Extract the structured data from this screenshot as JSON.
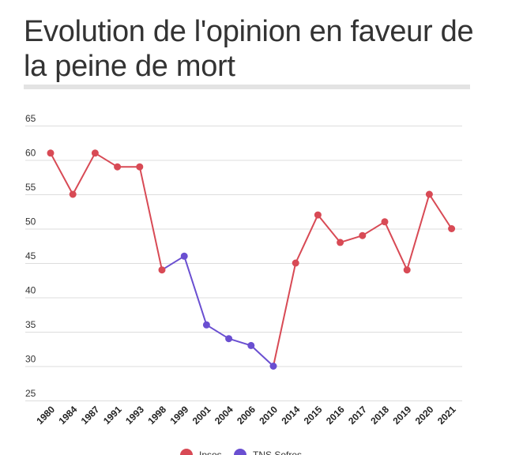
{
  "chart_data": {
    "type": "line",
    "title": "Evolution de l'opinion en faveur de la peine de mort",
    "xlabel": "",
    "ylabel": "",
    "categories": [
      "1980",
      "1984",
      "1987",
      "1991",
      "1993",
      "1998",
      "1999",
      "2001",
      "2004",
      "2006",
      "2010",
      "2014",
      "2015",
      "2016",
      "2017",
      "2018",
      "2019",
      "2020",
      "2021"
    ],
    "ylim": [
      25,
      65
    ],
    "yticks": [
      25,
      30,
      35,
      40,
      45,
      50,
      55,
      60,
      65
    ],
    "grid": true,
    "legend_position": "bottom",
    "series": [
      {
        "name": "Ipsos",
        "color": "#d84a55",
        "values": [
          61,
          55,
          61,
          59,
          59,
          44,
          null,
          null,
          null,
          null,
          null,
          45,
          52,
          48,
          49,
          51,
          44,
          55,
          50
        ]
      },
      {
        "name": "TNS Sofres",
        "color": "#6a4fd1",
        "values": [
          null,
          null,
          null,
          null,
          null,
          null,
          46,
          36,
          34,
          33,
          30,
          null,
          null,
          null,
          null,
          null,
          null,
          null,
          null
        ]
      }
    ],
    "connectors": [
      {
        "from_index": 5,
        "to_index": 6,
        "color": "#6a4fd1"
      },
      {
        "from_index": 10,
        "to_index": 11,
        "color": "#d84a55"
      }
    ]
  }
}
